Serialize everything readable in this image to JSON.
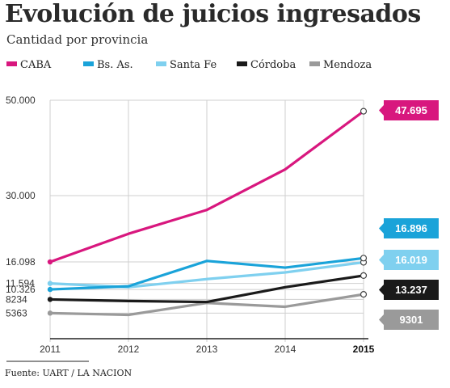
{
  "chart_data": {
    "type": "line",
    "title": "Evolución de juicios ingresados",
    "subtitle": "Cantidad por provincia",
    "source": "Fuente: UART / LA NACION",
    "x": [
      "2011",
      "2012",
      "2013",
      "2014",
      "2015"
    ],
    "x_bold": [
      "2015"
    ],
    "y_ticks": [
      "50.000",
      "30.000",
      "16.098",
      "11.594",
      "10.326",
      "8234",
      "5363"
    ],
    "y_tick_values": [
      50000,
      30000,
      16098,
      11594,
      10326,
      8234,
      5363
    ],
    "ylim": [
      0,
      52000
    ],
    "grid": true,
    "legend_placement": "top",
    "series": [
      {
        "name": "CABA",
        "color": "#d8177e",
        "values": [
          16098,
          22000,
          27000,
          35500,
          47695
        ],
        "end_label": "47.695"
      },
      {
        "name": "Bs. As.",
        "color": "#1aa3d9",
        "values": [
          10326,
          11000,
          16300,
          14900,
          16896
        ],
        "end_label": "16.896"
      },
      {
        "name": "Santa Fe",
        "color": "#7fd0ef",
        "values": [
          11594,
          10800,
          12500,
          13900,
          16019
        ],
        "end_label": "16.019"
      },
      {
        "name": "Córdoba",
        "color": "#1a1a1a",
        "values": [
          8234,
          7900,
          7700,
          10800,
          13237
        ],
        "end_label": "13.237"
      },
      {
        "name": "Mendoza",
        "color": "#9a9a9a",
        "values": [
          5363,
          5000,
          7500,
          6700,
          9301
        ],
        "end_label": "9301"
      }
    ]
  }
}
